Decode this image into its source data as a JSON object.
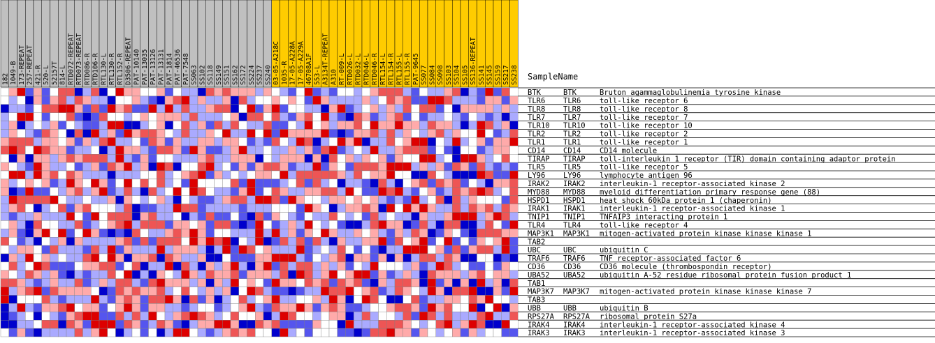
{
  "chart_data": {
    "type": "heatmap",
    "title": "",
    "sample_name_label": "SampleName",
    "columns": [
      {
        "label": "182",
        "group": "gray"
      },
      {
        "label": "1049-B",
        "group": "gray"
      },
      {
        "label": "173-REPEAT",
        "group": "gray"
      },
      {
        "label": "257-REPEAT",
        "group": "gray"
      },
      {
        "label": "421-R",
        "group": "gray"
      },
      {
        "label": "520-L",
        "group": "gray"
      },
      {
        "label": "52157T",
        "group": "gray"
      },
      {
        "label": "814-L",
        "group": "gray"
      },
      {
        "label": "RTD072-REPEAT",
        "group": "gray"
      },
      {
        "label": "RTD073-REPEAT",
        "group": "gray"
      },
      {
        "label": "RTD086-R",
        "group": "gray"
      },
      {
        "label": "RTD106-R",
        "group": "gray"
      },
      {
        "label": "RTL130-L",
        "group": "gray"
      },
      {
        "label": "RTL130-R",
        "group": "gray"
      },
      {
        "label": "RTL152-R",
        "group": "gray"
      },
      {
        "label": "D3506-REPEAT",
        "group": "gray"
      },
      {
        "label": "PAT-10140",
        "group": "gray"
      },
      {
        "label": "PAT-13035",
        "group": "gray"
      },
      {
        "label": "PAT-13126",
        "group": "gray"
      },
      {
        "label": "PAT-13131",
        "group": "gray"
      },
      {
        "label": "PAT-1814",
        "group": "gray"
      },
      {
        "label": "PAT-46536",
        "group": "gray"
      },
      {
        "label": "PAT-7548",
        "group": "gray"
      },
      {
        "label": "SS063",
        "group": "gray"
      },
      {
        "label": "SS102",
        "group": "gray"
      },
      {
        "label": "SS118",
        "group": "gray"
      },
      {
        "label": "SS149",
        "group": "gray"
      },
      {
        "label": "SS151",
        "group": "gray"
      },
      {
        "label": "SS162",
        "group": "gray"
      },
      {
        "label": "SS172",
        "group": "gray"
      },
      {
        "label": "SS224",
        "group": "gray"
      },
      {
        "label": "SS237",
        "group": "gray"
      },
      {
        "label": "SS240",
        "group": "gray"
      },
      {
        "label": "03-05-A218C",
        "group": "gold"
      },
      {
        "label": "1035-R",
        "group": "gold"
      },
      {
        "label": "17-05-A228A",
        "group": "gold"
      },
      {
        "label": "17-05-A229A",
        "group": "gold"
      },
      {
        "label": "46708A1F",
        "group": "gold"
      },
      {
        "label": "553-L",
        "group": "gold"
      },
      {
        "label": "A3134T-REPEAT",
        "group": "gold"
      },
      {
        "label": "A310",
        "group": "gold"
      },
      {
        "label": "RT-009-L",
        "group": "gold"
      },
      {
        "label": "RTD026-L",
        "group": "gold"
      },
      {
        "label": "RTD032-L",
        "group": "gold"
      },
      {
        "label": "RTD046-L",
        "group": "gold"
      },
      {
        "label": "RTD046-R",
        "group": "gold"
      },
      {
        "label": "RTL154-L",
        "group": "gold"
      },
      {
        "label": "RTL154-R",
        "group": "gold"
      },
      {
        "label": "RTL155-L",
        "group": "gold"
      },
      {
        "label": "RTL155-R",
        "group": "gold"
      },
      {
        "label": "PAT-9645",
        "group": "gold"
      },
      {
        "label": "SS077",
        "group": "gold"
      },
      {
        "label": "SS084",
        "group": "gold"
      },
      {
        "label": "SS098",
        "group": "gold"
      },
      {
        "label": "SS103",
        "group": "gold"
      },
      {
        "label": "SS104",
        "group": "gold"
      },
      {
        "label": "SS105",
        "group": "gold"
      },
      {
        "label": "SS136-REPEAT",
        "group": "gold"
      },
      {
        "label": "SS141",
        "group": "gold"
      },
      {
        "label": "SS145",
        "group": "gold"
      },
      {
        "label": "SS159",
        "group": "gold"
      },
      {
        "label": "SS217",
        "group": "gold"
      },
      {
        "label": "SS238",
        "group": "gold"
      }
    ],
    "rows": [
      {
        "symbol": "BTK",
        "gene": "BTK",
        "description": "Bruton agammaglobulinemia tyrosine kinase"
      },
      {
        "symbol": "TLR6",
        "gene": "TLR6",
        "description": "toll-like receptor 6"
      },
      {
        "symbol": "TLR8",
        "gene": "TLR8",
        "description": "toll-like receptor 8"
      },
      {
        "symbol": "TLR7",
        "gene": "TLR7",
        "description": "toll-like receptor 7"
      },
      {
        "symbol": "TLR10",
        "gene": "TLR10",
        "description": "toll-like receptor 10"
      },
      {
        "symbol": "TLR2",
        "gene": "TLR2",
        "description": "toll-like receptor 2"
      },
      {
        "symbol": "TLR1",
        "gene": "TLR1",
        "description": "toll-like receptor 1"
      },
      {
        "symbol": "CD14",
        "gene": "CD14",
        "description": "CD14 molecule"
      },
      {
        "symbol": "TIRAP",
        "gene": "TIRAP",
        "description": "toll-interleukin 1 receptor (TIR) domain containing adaptor protein"
      },
      {
        "symbol": "TLR5",
        "gene": "TLR5",
        "description": "toll-like receptor 5"
      },
      {
        "symbol": "LY96",
        "gene": "LY96",
        "description": "lymphocyte antigen 96"
      },
      {
        "symbol": "IRAK2",
        "gene": "IRAK2",
        "description": "interleukin-1 receptor-associated kinase 2"
      },
      {
        "symbol": "MYD88",
        "gene": "MYD88",
        "description": "myeloid differentiation primary response gene (88)"
      },
      {
        "symbol": "HSPD1",
        "gene": "HSPD1",
        "description": "heat shock 60kDa protein 1 (chaperonin)"
      },
      {
        "symbol": "IRAK1",
        "gene": "IRAK1",
        "description": "interleukin-1 receptor-associated kinase 1"
      },
      {
        "symbol": "TNIP1",
        "gene": "TNIP1",
        "description": "TNFAIP3 interacting protein 1"
      },
      {
        "symbol": "TLR4",
        "gene": "TLR4",
        "description": "toll-like receptor 4"
      },
      {
        "symbol": "MAP3K1",
        "gene": "MAP3K1",
        "description": "mitogen-activated protein kinase kinase kinase 1"
      },
      {
        "symbol": "TAB2",
        "gene": "",
        "description": ""
      },
      {
        "symbol": "UBC",
        "gene": "UBC",
        "description": "ubiquitin C"
      },
      {
        "symbol": "TRAF6",
        "gene": "TRAF6",
        "description": "TNF receptor-associated factor 6"
      },
      {
        "symbol": "CD36",
        "gene": "CD36",
        "description": "CD36 molecule (thrombospondin receptor)"
      },
      {
        "symbol": "UBA52",
        "gene": "UBA52",
        "description": "ubiquitin A-52 residue ribosomal protein fusion product 1"
      },
      {
        "symbol": "TAB1",
        "gene": "",
        "description": ""
      },
      {
        "symbol": "MAP3K7",
        "gene": "MAP3K7",
        "description": "mitogen-activated protein kinase kinase kinase 7"
      },
      {
        "symbol": "TAB3",
        "gene": "",
        "description": ""
      },
      {
        "symbol": "UBB",
        "gene": "UBB",
        "description": "ubiquitin B"
      },
      {
        "symbol": "RPS27A",
        "gene": "RPS27A",
        "description": "ribosomal protein S27a"
      },
      {
        "symbol": "IRAK4",
        "gene": "IRAK4",
        "description": "interleukin-1 receptor-associated kinase 4"
      },
      {
        "symbol": "IRAK3",
        "gene": "IRAK3",
        "description": "interleukin-1 receptor-associated kinase 3"
      }
    ],
    "palette": {
      "high": "#dd0000",
      "mid": "#ffffff",
      "low": "#0000cc",
      "header_gray": "#c0c0c0",
      "header_gold": "#ffcc00",
      "grid": "#808080"
    },
    "levels": [
      -3,
      -2,
      -1,
      0,
      1,
      2,
      3
    ],
    "matrix_seed": 20240521
  }
}
